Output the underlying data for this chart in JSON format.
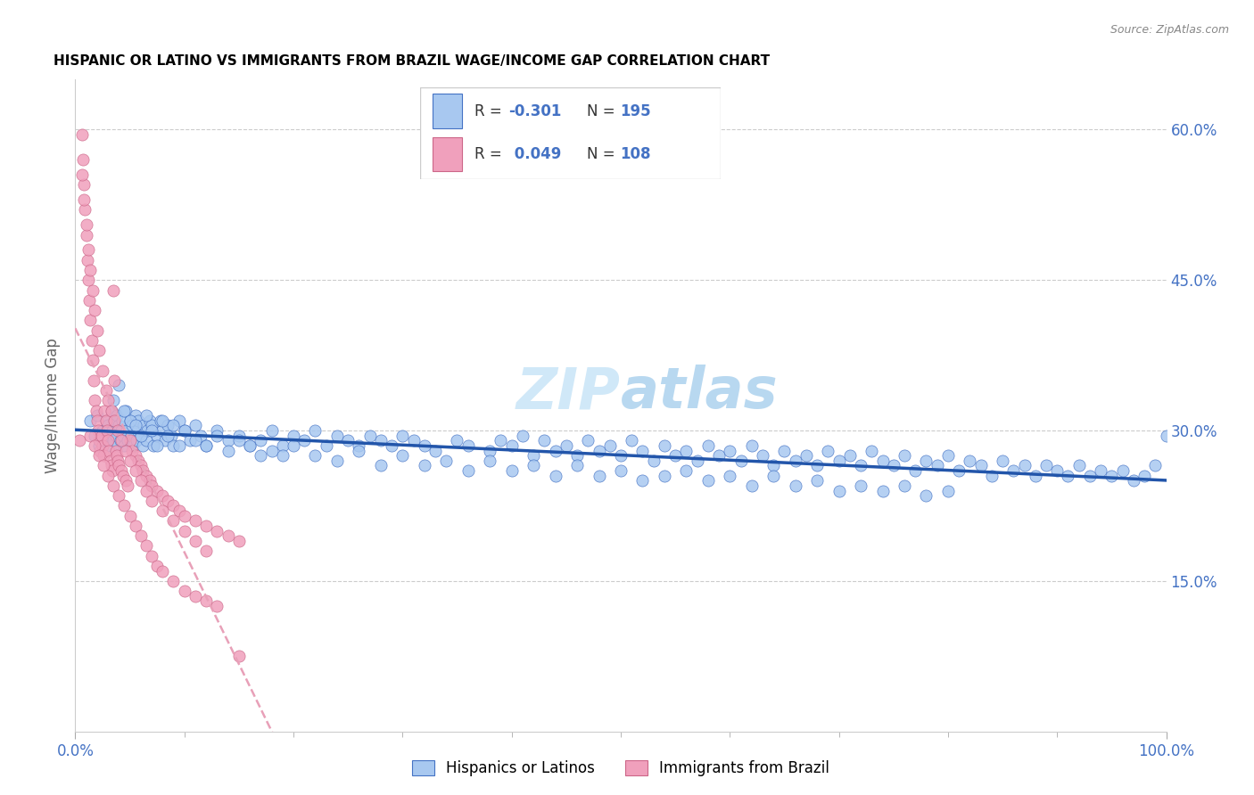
{
  "title": "HISPANIC OR LATINO VS IMMIGRANTS FROM BRAZIL WAGE/INCOME GAP CORRELATION CHART",
  "source": "Source: ZipAtlas.com",
  "ylabel": "Wage/Income Gap",
  "xlim": [
    0,
    1.0
  ],
  "ylim": [
    0,
    0.65
  ],
  "ytick_positions": [
    0.15,
    0.3,
    0.45,
    0.6
  ],
  "ytick_labels": [
    "15.0%",
    "30.0%",
    "45.0%",
    "60.0%"
  ],
  "legend_label1": "Hispanics or Latinos",
  "legend_label2": "Immigrants from Brazil",
  "color_blue": "#A8C8F0",
  "color_pink": "#F0A0BC",
  "color_blue_dark": "#4472C4",
  "color_trend_blue": "#2255AA",
  "color_trend_pink": "#E8A0B8",
  "watermark_color": "#D0E8F8",
  "blue_x": [
    0.014,
    0.018,
    0.02,
    0.022,
    0.025,
    0.026,
    0.028,
    0.03,
    0.031,
    0.032,
    0.033,
    0.034,
    0.035,
    0.036,
    0.037,
    0.038,
    0.039,
    0.04,
    0.041,
    0.042,
    0.043,
    0.044,
    0.045,
    0.046,
    0.047,
    0.048,
    0.05,
    0.051,
    0.052,
    0.053,
    0.055,
    0.056,
    0.057,
    0.058,
    0.06,
    0.062,
    0.063,
    0.065,
    0.066,
    0.068,
    0.07,
    0.072,
    0.075,
    0.078,
    0.08,
    0.082,
    0.085,
    0.088,
    0.09,
    0.095,
    0.1,
    0.105,
    0.11,
    0.115,
    0.12,
    0.13,
    0.14,
    0.15,
    0.16,
    0.17,
    0.18,
    0.19,
    0.2,
    0.21,
    0.22,
    0.23,
    0.24,
    0.25,
    0.26,
    0.27,
    0.28,
    0.29,
    0.3,
    0.31,
    0.32,
    0.33,
    0.35,
    0.36,
    0.38,
    0.39,
    0.4,
    0.41,
    0.42,
    0.43,
    0.44,
    0.45,
    0.46,
    0.47,
    0.48,
    0.49,
    0.5,
    0.51,
    0.52,
    0.53,
    0.54,
    0.55,
    0.56,
    0.57,
    0.58,
    0.59,
    0.6,
    0.61,
    0.62,
    0.63,
    0.64,
    0.65,
    0.66,
    0.67,
    0.68,
    0.69,
    0.7,
    0.71,
    0.72,
    0.73,
    0.74,
    0.75,
    0.76,
    0.77,
    0.78,
    0.79,
    0.8,
    0.81,
    0.82,
    0.83,
    0.84,
    0.85,
    0.86,
    0.87,
    0.88,
    0.89,
    0.9,
    0.91,
    0.92,
    0.93,
    0.94,
    0.95,
    0.96,
    0.97,
    0.98,
    0.99,
    1.0,
    0.035,
    0.04,
    0.045,
    0.05,
    0.055,
    0.06,
    0.065,
    0.07,
    0.075,
    0.08,
    0.085,
    0.09,
    0.095,
    0.1,
    0.11,
    0.12,
    0.13,
    0.14,
    0.15,
    0.16,
    0.17,
    0.18,
    0.19,
    0.2,
    0.22,
    0.24,
    0.26,
    0.28,
    0.3,
    0.32,
    0.34,
    0.36,
    0.38,
    0.4,
    0.42,
    0.44,
    0.46,
    0.48,
    0.5,
    0.52,
    0.54,
    0.56,
    0.58,
    0.6,
    0.62,
    0.64,
    0.66,
    0.68,
    0.7,
    0.72,
    0.74,
    0.76,
    0.78,
    0.8
  ],
  "blue_y": [
    0.31,
    0.295,
    0.315,
    0.285,
    0.3,
    0.29,
    0.31,
    0.305,
    0.295,
    0.285,
    0.32,
    0.3,
    0.29,
    0.31,
    0.295,
    0.315,
    0.285,
    0.305,
    0.29,
    0.3,
    0.31,
    0.295,
    0.285,
    0.32,
    0.3,
    0.29,
    0.31,
    0.295,
    0.305,
    0.285,
    0.315,
    0.29,
    0.3,
    0.31,
    0.295,
    0.285,
    0.305,
    0.29,
    0.3,
    0.31,
    0.305,
    0.285,
    0.295,
    0.31,
    0.3,
    0.29,
    0.305,
    0.295,
    0.285,
    0.31,
    0.3,
    0.29,
    0.305,
    0.295,
    0.285,
    0.3,
    0.29,
    0.295,
    0.285,
    0.29,
    0.3,
    0.285,
    0.295,
    0.29,
    0.3,
    0.285,
    0.295,
    0.29,
    0.285,
    0.295,
    0.29,
    0.285,
    0.295,
    0.29,
    0.285,
    0.28,
    0.29,
    0.285,
    0.28,
    0.29,
    0.285,
    0.295,
    0.275,
    0.29,
    0.28,
    0.285,
    0.275,
    0.29,
    0.28,
    0.285,
    0.275,
    0.29,
    0.28,
    0.27,
    0.285,
    0.275,
    0.28,
    0.27,
    0.285,
    0.275,
    0.28,
    0.27,
    0.285,
    0.275,
    0.265,
    0.28,
    0.27,
    0.275,
    0.265,
    0.28,
    0.27,
    0.275,
    0.265,
    0.28,
    0.27,
    0.265,
    0.275,
    0.26,
    0.27,
    0.265,
    0.275,
    0.26,
    0.27,
    0.265,
    0.255,
    0.27,
    0.26,
    0.265,
    0.255,
    0.265,
    0.26,
    0.255,
    0.265,
    0.255,
    0.26,
    0.255,
    0.26,
    0.25,
    0.255,
    0.265,
    0.295,
    0.33,
    0.345,
    0.32,
    0.31,
    0.305,
    0.295,
    0.315,
    0.3,
    0.285,
    0.31,
    0.295,
    0.305,
    0.285,
    0.3,
    0.29,
    0.285,
    0.295,
    0.28,
    0.29,
    0.285,
    0.275,
    0.28,
    0.275,
    0.285,
    0.275,
    0.27,
    0.28,
    0.265,
    0.275,
    0.265,
    0.27,
    0.26,
    0.27,
    0.26,
    0.265,
    0.255,
    0.265,
    0.255,
    0.26,
    0.25,
    0.255,
    0.26,
    0.25,
    0.255,
    0.245,
    0.255,
    0.245,
    0.25,
    0.24,
    0.245,
    0.24,
    0.245,
    0.235,
    0.24
  ],
  "pink_x": [
    0.004,
    0.006,
    0.007,
    0.008,
    0.009,
    0.01,
    0.011,
    0.012,
    0.013,
    0.014,
    0.015,
    0.016,
    0.017,
    0.018,
    0.019,
    0.02,
    0.021,
    0.022,
    0.023,
    0.024,
    0.025,
    0.026,
    0.027,
    0.028,
    0.029,
    0.03,
    0.031,
    0.032,
    0.033,
    0.034,
    0.035,
    0.036,
    0.037,
    0.038,
    0.039,
    0.04,
    0.042,
    0.044,
    0.046,
    0.048,
    0.05,
    0.052,
    0.055,
    0.058,
    0.06,
    0.062,
    0.065,
    0.068,
    0.07,
    0.075,
    0.08,
    0.085,
    0.09,
    0.095,
    0.1,
    0.11,
    0.12,
    0.13,
    0.14,
    0.15,
    0.006,
    0.008,
    0.01,
    0.012,
    0.014,
    0.016,
    0.018,
    0.02,
    0.022,
    0.025,
    0.028,
    0.03,
    0.033,
    0.036,
    0.039,
    0.042,
    0.046,
    0.05,
    0.055,
    0.06,
    0.065,
    0.07,
    0.08,
    0.09,
    0.1,
    0.11,
    0.12,
    0.014,
    0.018,
    0.022,
    0.026,
    0.03,
    0.035,
    0.04,
    0.045,
    0.05,
    0.055,
    0.06,
    0.065,
    0.07,
    0.075,
    0.08,
    0.09,
    0.1,
    0.11,
    0.12,
    0.13,
    0.15
  ],
  "pink_y": [
    0.29,
    0.595,
    0.57,
    0.545,
    0.52,
    0.495,
    0.47,
    0.45,
    0.43,
    0.41,
    0.39,
    0.37,
    0.35,
    0.33,
    0.32,
    0.31,
    0.3,
    0.29,
    0.28,
    0.295,
    0.285,
    0.275,
    0.32,
    0.31,
    0.3,
    0.29,
    0.28,
    0.27,
    0.265,
    0.26,
    0.44,
    0.35,
    0.28,
    0.275,
    0.27,
    0.265,
    0.26,
    0.255,
    0.25,
    0.245,
    0.29,
    0.28,
    0.275,
    0.27,
    0.265,
    0.26,
    0.255,
    0.25,
    0.245,
    0.24,
    0.235,
    0.23,
    0.225,
    0.22,
    0.215,
    0.21,
    0.205,
    0.2,
    0.195,
    0.19,
    0.555,
    0.53,
    0.505,
    0.48,
    0.46,
    0.44,
    0.42,
    0.4,
    0.38,
    0.36,
    0.34,
    0.33,
    0.32,
    0.31,
    0.3,
    0.29,
    0.28,
    0.27,
    0.26,
    0.25,
    0.24,
    0.23,
    0.22,
    0.21,
    0.2,
    0.19,
    0.18,
    0.295,
    0.285,
    0.275,
    0.265,
    0.255,
    0.245,
    0.235,
    0.225,
    0.215,
    0.205,
    0.195,
    0.185,
    0.175,
    0.165,
    0.16,
    0.15,
    0.14,
    0.135,
    0.13,
    0.125,
    0.075
  ]
}
